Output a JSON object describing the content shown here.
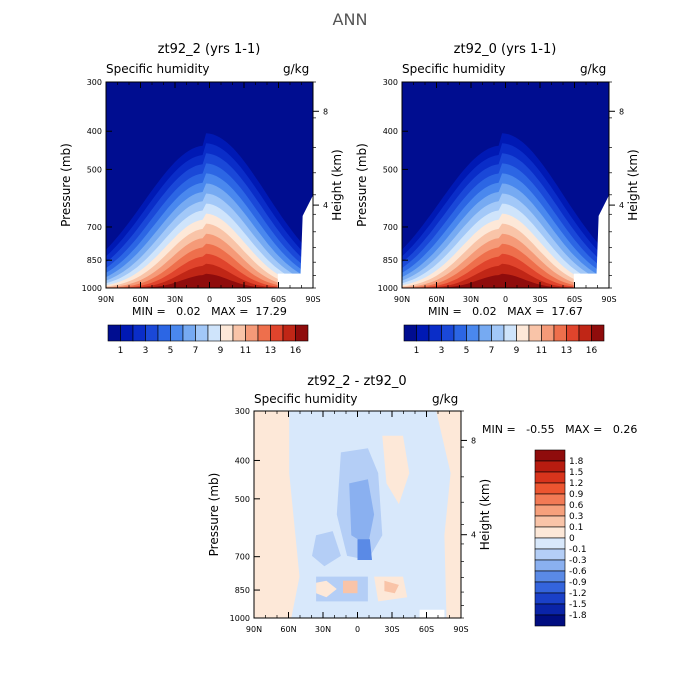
{
  "page": {
    "title": "ANN"
  },
  "chart_data": [
    {
      "type": "contour",
      "title": "zt92_2 (yrs 1-1)",
      "subtitle_left": "Specific humidity",
      "subtitle_right": "g/kg",
      "ylabel": "Pressure (mb)",
      "ylabel_right": "Height (km)",
      "xticks": [
        "90N",
        "60N",
        "30N",
        "0",
        "30S",
        "60S",
        "90S"
      ],
      "yticks": [
        "300",
        "400",
        "500",
        "700",
        "850",
        "1000"
      ],
      "ylim": [
        1000,
        300
      ],
      "right_ticks": [
        "8",
        "4"
      ],
      "stats": "MIN =   0.02   MAX =  17.29",
      "colorbar_labels": [
        "1",
        "3",
        "5",
        "7",
        "9",
        "11",
        "13",
        "16"
      ],
      "colors": [
        "#000d90",
        "#0019b4",
        "#0a2dc8",
        "#1a48d8",
        "#2c66e4",
        "#4a88ee",
        "#76aaf2",
        "#a2c8f8",
        "#cfe4fb",
        "#fde8d8",
        "#f9c4a8",
        "#f59a78",
        "#ee6f4c",
        "#e0442c",
        "#c02616",
        "#8f0c0c"
      ]
    },
    {
      "type": "contour",
      "title": "zt92_0 (yrs 1-1)",
      "subtitle_left": "Specific humidity",
      "subtitle_right": "g/kg",
      "ylabel": "Pressure (mb)",
      "ylabel_right": "Height (km)",
      "xticks": [
        "90N",
        "60N",
        "30N",
        "0",
        "30S",
        "60S",
        "90S"
      ],
      "yticks": [
        "300",
        "400",
        "500",
        "700",
        "850",
        "1000"
      ],
      "ylim": [
        1000,
        300
      ],
      "right_ticks": [
        "8",
        "4"
      ],
      "stats": "MIN =   0.02   MAX =  17.67",
      "colorbar_labels": [
        "1",
        "3",
        "5",
        "7",
        "9",
        "11",
        "13",
        "16"
      ],
      "colors": [
        "#000d90",
        "#0019b4",
        "#0a2dc8",
        "#1a48d8",
        "#2c66e4",
        "#4a88ee",
        "#76aaf2",
        "#a2c8f8",
        "#cfe4fb",
        "#fde8d8",
        "#f9c4a8",
        "#f59a78",
        "#ee6f4c",
        "#e0442c",
        "#c02616",
        "#8f0c0c"
      ]
    },
    {
      "type": "contour",
      "title": "zt92_2 - zt92_0",
      "subtitle_left": "Specific humidity",
      "subtitle_right": "g/kg",
      "ylabel": "Pressure (mb)",
      "ylabel_right": "Height (km)",
      "xticks": [
        "90N",
        "60N",
        "30N",
        "0",
        "30S",
        "60S",
        "90S"
      ],
      "yticks": [
        "300",
        "400",
        "500",
        "700",
        "850",
        "1000"
      ],
      "ylim": [
        1000,
        300
      ],
      "right_ticks": [
        "8",
        "4"
      ],
      "stats": "MIN =   -0.55   MAX =   0.26",
      "colorbar_labels": [
        "1.8",
        "1.5",
        "1.2",
        "0.9",
        "0.6",
        "0.3",
        "0.1",
        "0",
        "-0.1",
        "-0.3",
        "-0.6",
        "-0.9",
        "-1.2",
        "-1.5",
        "-1.8"
      ],
      "colors": [
        "#8f0c0c",
        "#b81c10",
        "#d8341c",
        "#ec5530",
        "#f27a55",
        "#f6a07c",
        "#f9c4a8",
        "#fde8d8",
        "#d8e8fb",
        "#b4cef6",
        "#8ab0f0",
        "#5a8ae6",
        "#3464dc",
        "#1a40c8",
        "#0a24a8",
        "#000d80"
      ]
    }
  ]
}
